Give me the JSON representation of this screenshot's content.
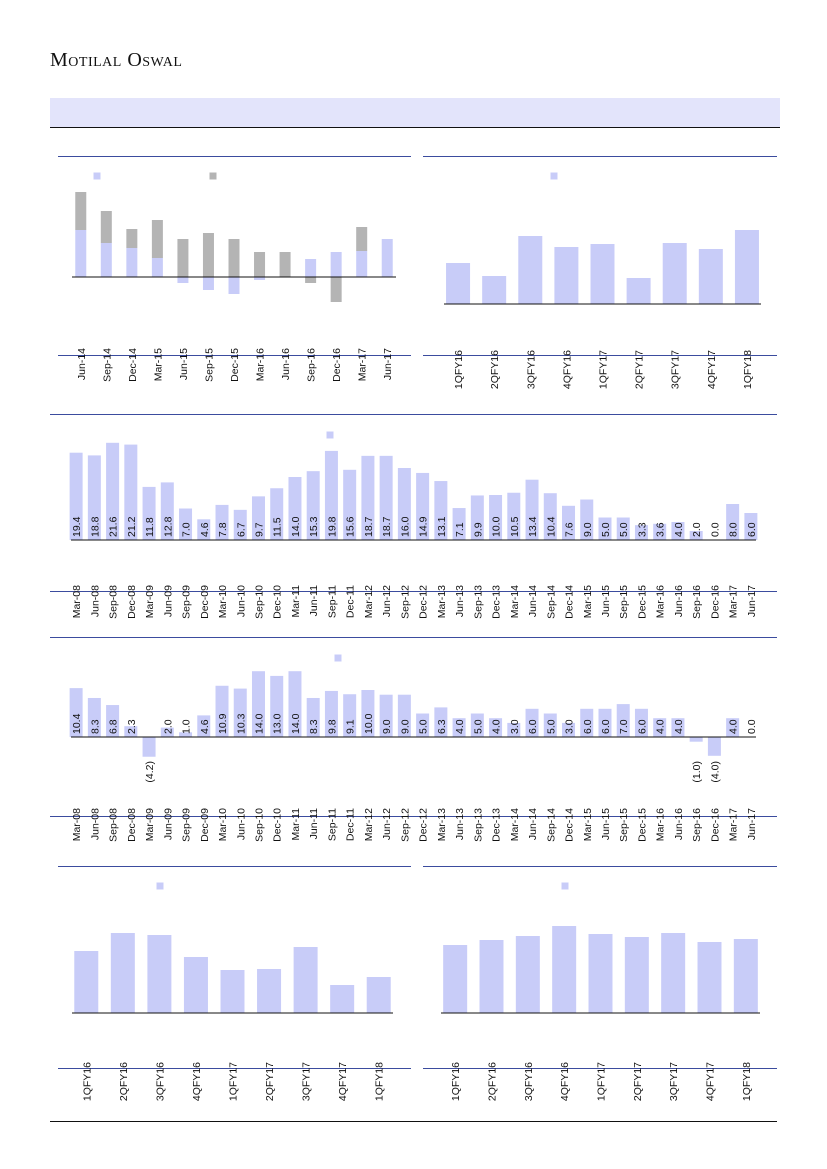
{
  "header": {
    "brand": "Motilal Oswal"
  },
  "chart_data": [
    {
      "type": "bar",
      "stacked": true,
      "categories": [
        "Jun-14",
        "Sep-14",
        "Dec-14",
        "Mar-15",
        "Jun-15",
        "Sep-15",
        "Dec-15",
        "Mar-16",
        "Jun-16",
        "Sep-16",
        "Dec-16",
        "Mar-17",
        "Jun-17"
      ],
      "series": [
        {
          "color": "#c8ccf8",
          "values": [
            47,
            34,
            29,
            19,
            -6,
            -13,
            -17,
            -3,
            0,
            18,
            25,
            26,
            38
          ]
        },
        {
          "color": "#b4b4b4",
          "values": [
            38,
            32,
            19,
            38,
            38,
            44,
            38,
            25,
            25,
            -6,
            -25,
            24,
            0
          ]
        }
      ],
      "ylim": [
        -28,
        92
      ]
    },
    {
      "type": "bar",
      "categories": [
        "1QFY16",
        "2QFY16",
        "3QFY16",
        "4QFY16",
        "1QFY17",
        "2QFY17",
        "3QFY17",
        "4QFY17",
        "1QFY18"
      ],
      "series": [
        {
          "color": "#c8ccf8",
          "values": [
            41,
            28,
            68,
            57,
            60,
            26,
            61,
            55,
            74
          ]
        }
      ],
      "ylim": [
        0,
        120
      ]
    },
    {
      "type": "bar",
      "categories": [
        "Mar-08",
        "Jun-08",
        "Sep-08",
        "Dec-08",
        "Mar-09",
        "Jun-09",
        "Sep-09",
        "Dec-09",
        "Mar-10",
        "Jun-10",
        "Sep-10",
        "Dec-10",
        "Mar-11",
        "Jun-11",
        "Sep-11",
        "Dec-11",
        "Mar-12",
        "Jun-12",
        "Sep-12",
        "Dec-12",
        "Mar-13",
        "Jun-13",
        "Sep-13",
        "Dec-13",
        "Mar-14",
        "Jun-14",
        "Sep-14",
        "Dec-14",
        "Mar-15",
        "Jun-15",
        "Sep-15",
        "Dec-15",
        "Mar-16",
        "Jun-16",
        "Sep-16",
        "Dec-16",
        "Mar-17",
        "Jun-17"
      ],
      "series": [
        {
          "color": "#c8ccf8",
          "values": [
            19.4,
            18.8,
            21.6,
            21.2,
            11.8,
            12.8,
            7,
            4.6,
            7.8,
            6.7,
            9.7,
            11.5,
            14,
            15.3,
            19.8,
            15.6,
            18.7,
            18.7,
            16,
            14.9,
            13.1,
            7.1,
            9.9,
            10,
            10.5,
            13.4,
            10.4,
            7.6,
            9,
            5,
            5,
            3.3,
            3.6,
            4,
            2,
            0,
            8,
            6
          ],
          "value_labels": [
            "19.4",
            "18.8",
            "21.6",
            "21.2",
            "11.8",
            "12.8",
            "7.0",
            "4.6",
            "7.8",
            "6.7",
            "9.7",
            "11.5",
            "14.0",
            "15.3",
            "19.8",
            "15.6",
            "18.7",
            "18.7",
            "16.0",
            "14.9",
            "13.1",
            "7.1",
            "9.9",
            "10.0",
            "10.5",
            "13.4",
            "10.4",
            "7.6",
            "9.0",
            "5.0",
            "5.0",
            "3.3",
            "3.6",
            "4.0",
            "2.0",
            "0.0",
            "8.0",
            "6.0"
          ]
        }
      ],
      "ylim": [
        0,
        22
      ]
    },
    {
      "type": "bar",
      "negative_label_color": "#ff0000",
      "categories": [
        "Mar-08",
        "Jun-08",
        "Sep-08",
        "Dec-08",
        "Mar-09",
        "Jun-09",
        "Sep-09",
        "Dec-09",
        "Mar-10",
        "Jun-10",
        "Sep-10",
        "Dec-10",
        "Mar-11",
        "Jun-11",
        "Sep-11",
        "Dec-11",
        "Mar-12",
        "Jun-12",
        "Sep-12",
        "Dec-12",
        "Mar-13",
        "Jun-13",
        "Sep-13",
        "Dec-13",
        "Mar-14",
        "Jun-14",
        "Sep-14",
        "Dec-14",
        "Mar-15",
        "Jun-15",
        "Sep-15",
        "Dec-15",
        "Mar-16",
        "Jun-16",
        "Sep-16",
        "Dec-16",
        "Mar-17",
        "Jun-17"
      ],
      "series": [
        {
          "color": "#c8ccf8",
          "values": [
            10.4,
            8.3,
            6.8,
            2.3,
            -4.2,
            2,
            1,
            4.6,
            10.9,
            10.3,
            14,
            13,
            14,
            8.3,
            9.8,
            9.1,
            10,
            9,
            9,
            5,
            6.3,
            4,
            5,
            4,
            3,
            6,
            5,
            3,
            6,
            6,
            7,
            6,
            4,
            4,
            -1,
            -4,
            4,
            0
          ],
          "value_labels": [
            "10.4",
            "8.3",
            "6.8",
            "2.3",
            "(4.2)",
            "2.0",
            "1.0",
            "4.6",
            "10.9",
            "10.3",
            "14.0",
            "13.0",
            "14.0",
            "8.3",
            "9.8",
            "9.1",
            "10.0",
            "9.0",
            "9.0",
            "5.0",
            "6.3",
            "4.0",
            "5.0",
            "4.0",
            "3.0",
            "6.0",
            "5.0",
            "3.0",
            "6.0",
            "6.0",
            "7.0",
            "6.0",
            "4.0",
            "4.0",
            "(1.0)",
            "(4.0)",
            "4.0",
            "0.0"
          ]
        }
      ],
      "ylim": [
        -6,
        15
      ]
    },
    {
      "type": "bar",
      "categories": [
        "1QFY16",
        "2QFY16",
        "3QFY16",
        "4QFY16",
        "1QFY17",
        "2QFY17",
        "3QFY17",
        "4QFY17",
        "1QFY18"
      ],
      "series": [
        {
          "color": "#c8ccf8",
          "values": [
            62,
            80,
            78,
            56,
            43,
            44,
            66,
            28,
            36
          ]
        }
      ],
      "ylim": [
        0,
        120
      ]
    },
    {
      "type": "bar",
      "categories": [
        "1QFY16",
        "2QFY16",
        "3QFY16",
        "4QFY16",
        "1QFY17",
        "2QFY17",
        "3QFY17",
        "4QFY17",
        "1QFY18"
      ],
      "series": [
        {
          "color": "#c8ccf8",
          "values": [
            68,
            73,
            77,
            87,
            79,
            76,
            80,
            71,
            74
          ]
        }
      ],
      "ylim": [
        0,
        120
      ]
    }
  ]
}
